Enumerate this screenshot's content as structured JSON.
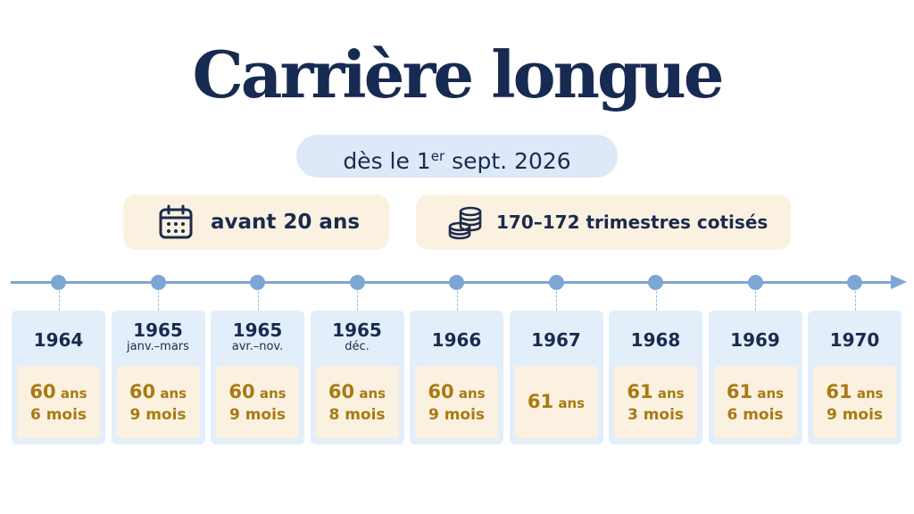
{
  "title": "Carrière longue",
  "subtitle": {
    "prefix": "dès le 1",
    "superscript": "er",
    "suffix": " sept. 2026"
  },
  "conditions": [
    {
      "icon": "calendar-icon",
      "label": "avant 20 ans"
    },
    {
      "icon": "coins-icon",
      "label": "170–172 trimestres cotisés"
    }
  ],
  "colors": {
    "title": "#172a52",
    "timeline": "#7ea6d4",
    "card_background": "#e3eefb",
    "age_background": "#fbf1e0",
    "age_text": "#a87a12"
  },
  "timeline": [
    {
      "year": "1964",
      "period": "",
      "age_years": "60",
      "age_unit": "ans",
      "months": "6 mois"
    },
    {
      "year": "1965",
      "period": "janv.–mars",
      "age_years": "60",
      "age_unit": "ans",
      "months": "9 mois"
    },
    {
      "year": "1965",
      "period": "avr.–nov.",
      "age_years": "60",
      "age_unit": "ans",
      "months": "9 mois"
    },
    {
      "year": "1965",
      "period": "déc.",
      "age_years": "60",
      "age_unit": "ans",
      "months": "8 mois"
    },
    {
      "year": "1966",
      "period": "",
      "age_years": "60",
      "age_unit": "ans",
      "months": "9 mois"
    },
    {
      "year": "1967",
      "period": "",
      "age_years": "61",
      "age_unit": "ans",
      "months": ""
    },
    {
      "year": "1968",
      "period": "",
      "age_years": "61",
      "age_unit": "ans",
      "months": "3 mois"
    },
    {
      "year": "1969",
      "period": "",
      "age_years": "61",
      "age_unit": "ans",
      "months": "6 mois"
    },
    {
      "year": "1970",
      "period": "",
      "age_years": "61",
      "age_unit": "ans",
      "months": "9 mois"
    }
  ]
}
